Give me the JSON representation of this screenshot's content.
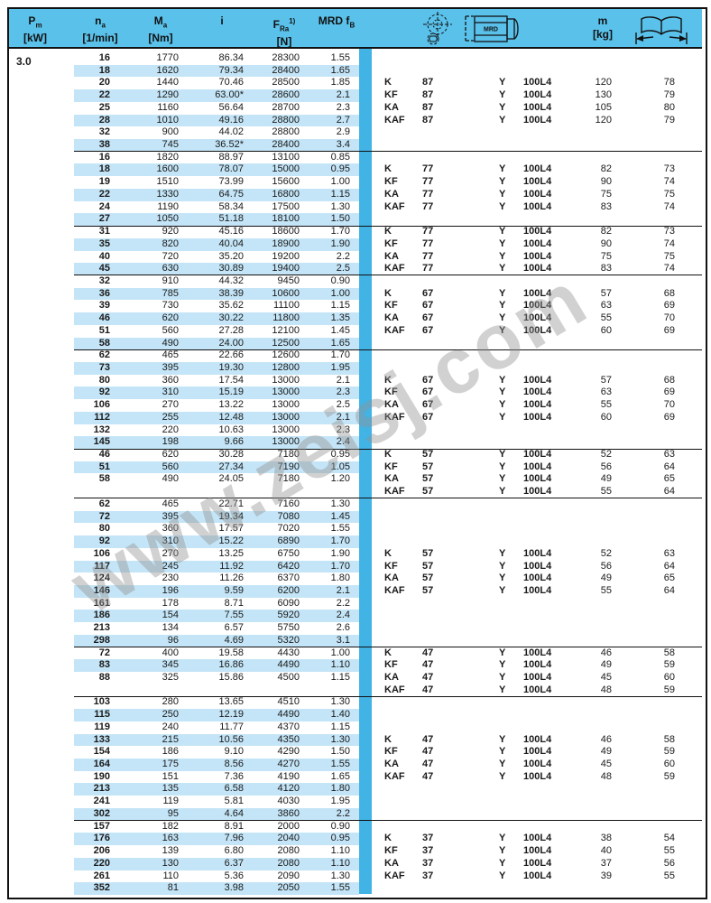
{
  "watermark": "www.zeisj.com",
  "pm_value": "3.0",
  "header": {
    "col_pm": {
      "sym": "P",
      "sub": "m",
      "unit": "[kW]"
    },
    "col_na": {
      "sym": "n",
      "sub": "a",
      "unit": "[1/min]"
    },
    "col_ma": {
      "sym": "M",
      "sub": "a",
      "unit": "[Nm]"
    },
    "col_i": {
      "sym": "i"
    },
    "col_fra": {
      "sym": "F",
      "sub": "Ra",
      "sup": "1)",
      "unit": "[N]"
    },
    "col_mrd": {
      "text": "MRD f",
      "sub": "B"
    },
    "col_m": {
      "sym": "m",
      "unit": "[kg]"
    },
    "motor_icon_label": "MRD",
    "icons": [
      "gearbox-drawing-icon",
      "motor-mrd-icon",
      "book-page-range-icon"
    ]
  },
  "blocks": [
    {
      "variant_start_row": 2,
      "pad_rows": 0,
      "rows": [
        {
          "na": "16",
          "ma": "1770",
          "i": "86.34",
          "fra": "28300",
          "fb": "1.55"
        },
        {
          "na": "18",
          "ma": "1620",
          "i": "79.34",
          "fra": "28400",
          "fb": "1.65"
        },
        {
          "na": "20",
          "ma": "1440",
          "i": "70.46",
          "fra": "28500",
          "fb": "1.85"
        },
        {
          "na": "22",
          "ma": "1290",
          "i": "63.00*",
          "fra": "28600",
          "fb": "2.1"
        },
        {
          "na": "25",
          "ma": "1160",
          "i": "56.64",
          "fra": "28700",
          "fb": "2.3"
        },
        {
          "na": "28",
          "ma": "1010",
          "i": "49.16",
          "fra": "28800",
          "fb": "2.7"
        },
        {
          "na": "32",
          "ma": "900",
          "i": "44.02",
          "fra": "28800",
          "fb": "2.9"
        },
        {
          "na": "38",
          "ma": "745",
          "i": "36.52*",
          "fra": "28400",
          "fb": "3.4"
        }
      ],
      "variants": [
        {
          "type": "K",
          "size": "87",
          "mount": "Y",
          "motor": "100L4",
          "m": "120",
          "page": "78"
        },
        {
          "type": "KF",
          "size": "87",
          "mount": "Y",
          "motor": "100L4",
          "m": "130",
          "page": "79"
        },
        {
          "type": "KA",
          "size": "87",
          "mount": "Y",
          "motor": "100L4",
          "m": "105",
          "page": "80"
        },
        {
          "type": "KAF",
          "size": "87",
          "mount": "Y",
          "motor": "100L4",
          "m": "120",
          "page": "79"
        }
      ]
    },
    {
      "variant_start_row": 1,
      "pad_rows": 0,
      "rows": [
        {
          "na": "16",
          "ma": "1820",
          "i": "88.97",
          "fra": "13100",
          "fb": "0.85"
        },
        {
          "na": "18",
          "ma": "1600",
          "i": "78.07",
          "fra": "15000",
          "fb": "0.95"
        },
        {
          "na": "19",
          "ma": "1510",
          "i": "73.99",
          "fra": "15600",
          "fb": "1.00"
        },
        {
          "na": "22",
          "ma": "1330",
          "i": "64.75",
          "fra": "16800",
          "fb": "1.15"
        },
        {
          "na": "24",
          "ma": "1190",
          "i": "58.34",
          "fra": "17500",
          "fb": "1.30"
        },
        {
          "na": "27",
          "ma": "1050",
          "i": "51.18",
          "fra": "18100",
          "fb": "1.50"
        }
      ],
      "variants": [
        {
          "type": "K",
          "size": "77",
          "mount": "Y",
          "motor": "100L4",
          "m": "82",
          "page": "73"
        },
        {
          "type": "KF",
          "size": "77",
          "mount": "Y",
          "motor": "100L4",
          "m": "90",
          "page": "74"
        },
        {
          "type": "KA",
          "size": "77",
          "mount": "Y",
          "motor": "100L4",
          "m": "75",
          "page": "75"
        },
        {
          "type": "KAF",
          "size": "77",
          "mount": "Y",
          "motor": "100L4",
          "m": "83",
          "page": "74"
        }
      ]
    },
    {
      "variant_start_row": 0,
      "pad_rows": 0,
      "rows": [
        {
          "na": "31",
          "ma": "920",
          "i": "45.16",
          "fra": "18600",
          "fb": "1.70"
        },
        {
          "na": "35",
          "ma": "820",
          "i": "40.04",
          "fra": "18900",
          "fb": "1.90"
        },
        {
          "na": "40",
          "ma": "720",
          "i": "35.20",
          "fra": "19200",
          "fb": "2.2"
        },
        {
          "na": "45",
          "ma": "630",
          "i": "30.89",
          "fra": "19400",
          "fb": "2.5"
        }
      ],
      "variants": [
        {
          "type": "K",
          "size": "77",
          "mount": "Y",
          "motor": "100L4",
          "m": "82",
          "page": "73"
        },
        {
          "type": "KF",
          "size": "77",
          "mount": "Y",
          "motor": "100L4",
          "m": "90",
          "page": "74"
        },
        {
          "type": "KA",
          "size": "77",
          "mount": "Y",
          "motor": "100L4",
          "m": "75",
          "page": "75"
        },
        {
          "type": "KAF",
          "size": "77",
          "mount": "Y",
          "motor": "100L4",
          "m": "83",
          "page": "74"
        }
      ]
    },
    {
      "variant_start_row": 1,
      "pad_rows": 0,
      "rows": [
        {
          "na": "32",
          "ma": "910",
          "i": "44.32",
          "fra": "9450",
          "fb": "0.90"
        },
        {
          "na": "36",
          "ma": "785",
          "i": "38.39",
          "fra": "10600",
          "fb": "1.00"
        },
        {
          "na": "39",
          "ma": "730",
          "i": "35.62",
          "fra": "11100",
          "fb": "1.15"
        },
        {
          "na": "46",
          "ma": "620",
          "i": "30.22",
          "fra": "11800",
          "fb": "1.35"
        },
        {
          "na": "51",
          "ma": "560",
          "i": "27.28",
          "fra": "12100",
          "fb": "1.45"
        },
        {
          "na": "58",
          "ma": "490",
          "i": "24.00",
          "fra": "12500",
          "fb": "1.65"
        }
      ],
      "variants": [
        {
          "type": "K",
          "size": "67",
          "mount": "Y",
          "motor": "100L4",
          "m": "57",
          "page": "68"
        },
        {
          "type": "KF",
          "size": "67",
          "mount": "Y",
          "motor": "100L4",
          "m": "63",
          "page": "69"
        },
        {
          "type": "KA",
          "size": "67",
          "mount": "Y",
          "motor": "100L4",
          "m": "55",
          "page": "70"
        },
        {
          "type": "KAF",
          "size": "67",
          "mount": "Y",
          "motor": "100L4",
          "m": "60",
          "page": "69"
        }
      ]
    },
    {
      "variant_start_row": 2,
      "pad_rows": 0,
      "rows": [
        {
          "na": "62",
          "ma": "465",
          "i": "22.66",
          "fra": "12600",
          "fb": "1.70"
        },
        {
          "na": "73",
          "ma": "395",
          "i": "19.30",
          "fra": "12800",
          "fb": "1.95"
        },
        {
          "na": "80",
          "ma": "360",
          "i": "17.54",
          "fra": "13000",
          "fb": "2.1"
        },
        {
          "na": "92",
          "ma": "310",
          "i": "15.19",
          "fra": "13000",
          "fb": "2.3"
        },
        {
          "na": "106",
          "ma": "270",
          "i": "13.22",
          "fra": "13000",
          "fb": "2.5"
        },
        {
          "na": "112",
          "ma": "255",
          "i": "12.48",
          "fra": "13000",
          "fb": "2.1"
        },
        {
          "na": "132",
          "ma": "220",
          "i": "10.63",
          "fra": "13000",
          "fb": "2.3"
        },
        {
          "na": "145",
          "ma": "198",
          "i": "9.66",
          "fra": "13000",
          "fb": "2.4"
        }
      ],
      "variants": [
        {
          "type": "K",
          "size": "67",
          "mount": "Y",
          "motor": "100L4",
          "m": "57",
          "page": "68"
        },
        {
          "type": "KF",
          "size": "67",
          "mount": "Y",
          "motor": "100L4",
          "m": "63",
          "page": "69"
        },
        {
          "type": "KA",
          "size": "67",
          "mount": "Y",
          "motor": "100L4",
          "m": "55",
          "page": "70"
        },
        {
          "type": "KAF",
          "size": "67",
          "mount": "Y",
          "motor": "100L4",
          "m": "60",
          "page": "69"
        }
      ]
    },
    {
      "variant_start_row": 0,
      "pad_rows": 1,
      "rows": [
        {
          "na": "46",
          "ma": "620",
          "i": "30.28",
          "fra": "7180",
          "fb": "0.95"
        },
        {
          "na": "51",
          "ma": "560",
          "i": "27.34",
          "fra": "7190",
          "fb": "1.05"
        },
        {
          "na": "58",
          "ma": "490",
          "i": "24.05",
          "fra": "7180",
          "fb": "1.20"
        }
      ],
      "variants": [
        {
          "type": "K",
          "size": "57",
          "mount": "Y",
          "motor": "100L4",
          "m": "52",
          "page": "63"
        },
        {
          "type": "KF",
          "size": "57",
          "mount": "Y",
          "motor": "100L4",
          "m": "56",
          "page": "64"
        },
        {
          "type": "KA",
          "size": "57",
          "mount": "Y",
          "motor": "100L4",
          "m": "49",
          "page": "65"
        },
        {
          "type": "KAF",
          "size": "57",
          "mount": "Y",
          "motor": "100L4",
          "m": "55",
          "page": "64"
        }
      ]
    },
    {
      "variant_start_row": 4,
      "pad_rows": 0,
      "rows": [
        {
          "na": "62",
          "ma": "465",
          "i": "22.71",
          "fra": "7160",
          "fb": "1.30"
        },
        {
          "na": "72",
          "ma": "395",
          "i": "19.34",
          "fra": "7080",
          "fb": "1.45"
        },
        {
          "na": "80",
          "ma": "360",
          "i": "17.57",
          "fra": "7020",
          "fb": "1.55"
        },
        {
          "na": "92",
          "ma": "310",
          "i": "15.22",
          "fra": "6890",
          "fb": "1.70"
        },
        {
          "na": "106",
          "ma": "270",
          "i": "13.25",
          "fra": "6750",
          "fb": "1.90"
        },
        {
          "na": "117",
          "ma": "245",
          "i": "11.92",
          "fra": "6420",
          "fb": "1.70"
        },
        {
          "na": "124",
          "ma": "230",
          "i": "11.26",
          "fra": "6370",
          "fb": "1.80"
        },
        {
          "na": "146",
          "ma": "196",
          "i": "9.59",
          "fra": "6200",
          "fb": "2.1"
        },
        {
          "na": "161",
          "ma": "178",
          "i": "8.71",
          "fra": "6090",
          "fb": "2.2"
        },
        {
          "na": "186",
          "ma": "154",
          "i": "7.55",
          "fra": "5920",
          "fb": "2.4"
        },
        {
          "na": "213",
          "ma": "134",
          "i": "6.57",
          "fra": "5750",
          "fb": "2.6"
        },
        {
          "na": "298",
          "ma": "96",
          "i": "4.69",
          "fra": "5320",
          "fb": "3.1"
        }
      ],
      "variants": [
        {
          "type": "K",
          "size": "57",
          "mount": "Y",
          "motor": "100L4",
          "m": "52",
          "page": "63"
        },
        {
          "type": "KF",
          "size": "57",
          "mount": "Y",
          "motor": "100L4",
          "m": "56",
          "page": "64"
        },
        {
          "type": "KA",
          "size": "57",
          "mount": "Y",
          "motor": "100L4",
          "m": "49",
          "page": "65"
        },
        {
          "type": "KAF",
          "size": "57",
          "mount": "Y",
          "motor": "100L4",
          "m": "55",
          "page": "64"
        }
      ]
    },
    {
      "variant_start_row": 0,
      "pad_rows": 1,
      "rows": [
        {
          "na": "72",
          "ma": "400",
          "i": "19.58",
          "fra": "4430",
          "fb": "1.00"
        },
        {
          "na": "83",
          "ma": "345",
          "i": "16.86",
          "fra": "4490",
          "fb": "1.10"
        },
        {
          "na": "88",
          "ma": "325",
          "i": "15.86",
          "fra": "4500",
          "fb": "1.15"
        }
      ],
      "variants": [
        {
          "type": "K",
          "size": "47",
          "mount": "Y",
          "motor": "100L4",
          "m": "46",
          "page": "58"
        },
        {
          "type": "KF",
          "size": "47",
          "mount": "Y",
          "motor": "100L4",
          "m": "49",
          "page": "59"
        },
        {
          "type": "KA",
          "size": "47",
          "mount": "Y",
          "motor": "100L4",
          "m": "45",
          "page": "60"
        },
        {
          "type": "KAF",
          "size": "47",
          "mount": "Y",
          "motor": "100L4",
          "m": "48",
          "page": "59"
        }
      ]
    },
    {
      "variant_start_row": 3,
      "pad_rows": 0,
      "rows": [
        {
          "na": "103",
          "ma": "280",
          "i": "13.65",
          "fra": "4510",
          "fb": "1.30"
        },
        {
          "na": "115",
          "ma": "250",
          "i": "12.19",
          "fra": "4490",
          "fb": "1.40"
        },
        {
          "na": "119",
          "ma": "240",
          "i": "11.77",
          "fra": "4370",
          "fb": "1.15"
        },
        {
          "na": "133",
          "ma": "215",
          "i": "10.56",
          "fra": "4350",
          "fb": "1.30"
        },
        {
          "na": "154",
          "ma": "186",
          "i": "9.10",
          "fra": "4290",
          "fb": "1.50"
        },
        {
          "na": "164",
          "ma": "175",
          "i": "8.56",
          "fra": "4270",
          "fb": "1.55"
        },
        {
          "na": "190",
          "ma": "151",
          "i": "7.36",
          "fra": "4190",
          "fb": "1.65"
        },
        {
          "na": "213",
          "ma": "135",
          "i": "6.58",
          "fra": "4120",
          "fb": "1.80"
        },
        {
          "na": "241",
          "ma": "119",
          "i": "5.81",
          "fra": "4030",
          "fb": "1.95"
        },
        {
          "na": "302",
          "ma": "95",
          "i": "4.64",
          "fra": "3860",
          "fb": "2.2"
        }
      ],
      "variants": [
        {
          "type": "K",
          "size": "47",
          "mount": "Y",
          "motor": "100L4",
          "m": "46",
          "page": "58"
        },
        {
          "type": "KF",
          "size": "47",
          "mount": "Y",
          "motor": "100L4",
          "m": "49",
          "page": "59"
        },
        {
          "type": "KA",
          "size": "47",
          "mount": "Y",
          "motor": "100L4",
          "m": "45",
          "page": "60"
        },
        {
          "type": "KAF",
          "size": "47",
          "mount": "Y",
          "motor": "100L4",
          "m": "48",
          "page": "59"
        }
      ]
    },
    {
      "variant_start_row": 1,
      "pad_rows": 0,
      "rows": [
        {
          "na": "157",
          "ma": "182",
          "i": "8.91",
          "fra": "2000",
          "fb": "0.90"
        },
        {
          "na": "176",
          "ma": "163",
          "i": "7.96",
          "fra": "2040",
          "fb": "0.95"
        },
        {
          "na": "206",
          "ma": "139",
          "i": "6.80",
          "fra": "2080",
          "fb": "1.10"
        },
        {
          "na": "220",
          "ma": "130",
          "i": "6.37",
          "fra": "2080",
          "fb": "1.10"
        },
        {
          "na": "261",
          "ma": "110",
          "i": "5.36",
          "fra": "2090",
          "fb": "1.30"
        },
        {
          "na": "352",
          "ma": "81",
          "i": "3.98",
          "fra": "2050",
          "fb": "1.55"
        }
      ],
      "variants": [
        {
          "type": "K",
          "size": "37",
          "mount": "Y",
          "motor": "100L4",
          "m": "38",
          "page": "54"
        },
        {
          "type": "KF",
          "size": "37",
          "mount": "Y",
          "motor": "100L4",
          "m": "40",
          "page": "55"
        },
        {
          "type": "KA",
          "size": "37",
          "mount": "Y",
          "motor": "100L4",
          "m": "37",
          "page": "56"
        },
        {
          "type": "KAF",
          "size": "37",
          "mount": "Y",
          "motor": "100L4",
          "m": "39",
          "page": "55"
        }
      ]
    }
  ]
}
